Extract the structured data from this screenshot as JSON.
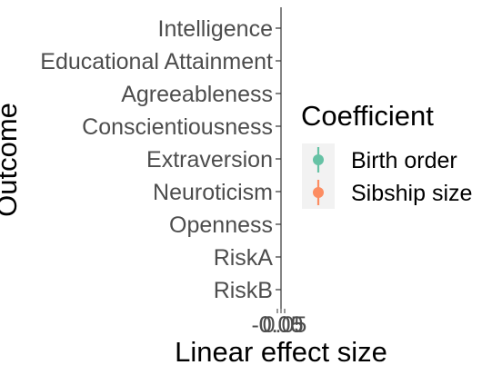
{
  "chart_data": {
    "type": "scatter",
    "xlabel": "Linear effect size",
    "ylabel": "Outcome",
    "categories": [
      "Intelligence",
      "Educational Attainment",
      "Agreeableness",
      "Conscientiousness",
      "Extraversion",
      "Neuroticism",
      "Openness",
      "RiskA",
      "RiskB"
    ],
    "x_ticks": [
      "-0.05",
      "0.00",
      "0.05"
    ],
    "legend": {
      "title": "Coefficient",
      "position": "right",
      "entries": [
        {
          "name": "Birth order",
          "color": "#66c2a5"
        },
        {
          "name": "Sibship size",
          "color": "#fc8d62"
        }
      ]
    },
    "series": [
      {
        "name": "Birth order",
        "values": []
      },
      {
        "name": "Sibship size",
        "values": []
      }
    ],
    "grid": false
  }
}
